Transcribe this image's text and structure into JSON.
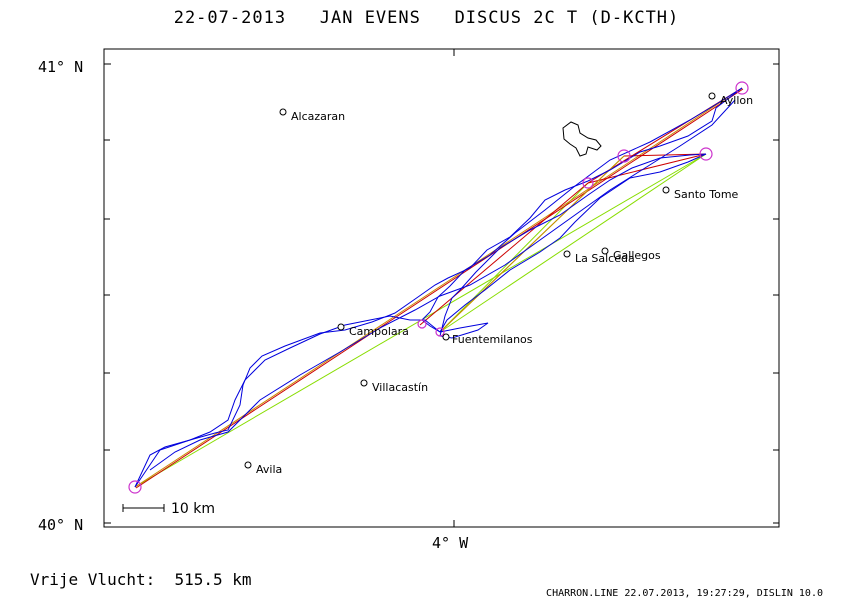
{
  "header": {
    "title": "22-07-2013   JAN EVENS   DISCUS 2C T (D-KCTH)"
  },
  "axes": {
    "lat_top": "41° N",
    "lat_bottom": "40° N",
    "lon_mid": "4° W"
  },
  "scale_bar": {
    "label": "10 km"
  },
  "places": [
    {
      "name": "Alcazaran"
    },
    {
      "name": "Ayllon"
    },
    {
      "name": "Santo Tome"
    },
    {
      "name": "Gallegos"
    },
    {
      "name": "La Salceda"
    },
    {
      "name": "Campolara"
    },
    {
      "name": "Fuentemilanos"
    },
    {
      "name": "Villacastín"
    },
    {
      "name": "Avila"
    }
  ],
  "colors": {
    "track": "#0000dd",
    "task_leg": "#cc0000",
    "task_leg_alt": "#cc8800",
    "declared_leg": "#88dd00",
    "turnpoint": "#cc33cc",
    "frame": "#000000"
  },
  "footer": {
    "distance_label": "Vrije Vlucht:  515.5 km",
    "credit": "CHARRON.LINE 22.07.2013, 19:27:29, DISLIN 10.0"
  }
}
